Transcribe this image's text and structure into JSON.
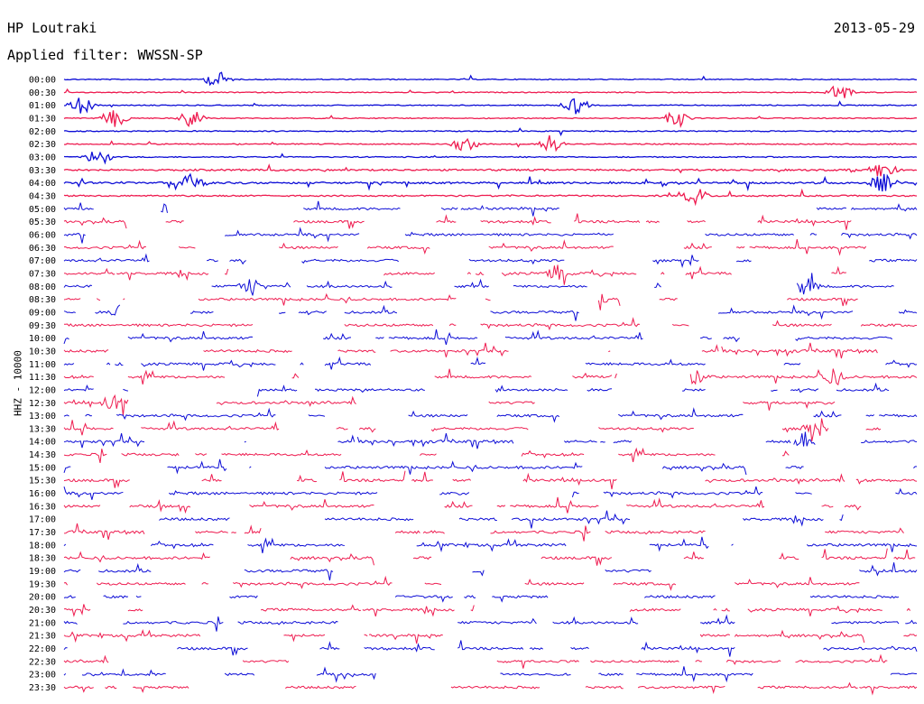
{
  "header": {
    "station": "HP Loutraki",
    "date": "2013-05-29",
    "filter": "Applied filter: WWSSN-SP"
  },
  "colors": {
    "blue": "#0d0dd6",
    "red": "#ee1c50"
  },
  "chart_data": {
    "type": "line",
    "title": "HP Loutraki",
    "subtitle": "Applied filter: WWSSN-SP",
    "ylabel": "HHZ - 10000",
    "xlabel": "",
    "grid": false,
    "legend": "none",
    "series_color_order": [
      "blue",
      "red"
    ],
    "rows": [
      {
        "label": "00:00",
        "activity": 0.1,
        "events": [
          0.18
        ]
      },
      {
        "label": "00:30",
        "activity": 0.08,
        "events": [
          0.91
        ]
      },
      {
        "label": "01:00",
        "activity": 0.1,
        "events": [
          0.02,
          0.6
        ]
      },
      {
        "label": "01:30",
        "activity": 0.1,
        "events": [
          0.06,
          0.15,
          0.72
        ]
      },
      {
        "label": "02:00",
        "activity": 0.12,
        "events": []
      },
      {
        "label": "02:30",
        "activity": 0.12,
        "events": [
          0.47,
          0.57
        ]
      },
      {
        "label": "03:00",
        "activity": 0.15,
        "events": [
          0.04
        ]
      },
      {
        "label": "03:30",
        "activity": 0.45,
        "events": [
          0.96
        ]
      },
      {
        "label": "04:00",
        "activity": 0.5,
        "events": [
          0.15,
          0.96
        ]
      },
      {
        "label": "04:30",
        "activity": 0.3,
        "events": [
          0.74
        ]
      },
      {
        "label": "05:00",
        "activity": 0.7,
        "events": [
          0.13
        ]
      },
      {
        "label": "05:30",
        "activity": 0.75,
        "events": []
      },
      {
        "label": "06:00",
        "activity": 0.75,
        "events": []
      },
      {
        "label": "06:30",
        "activity": 0.75,
        "events": []
      },
      {
        "label": "07:00",
        "activity": 0.8,
        "events": []
      },
      {
        "label": "07:30",
        "activity": 0.8,
        "events": [
          0.58
        ]
      },
      {
        "label": "08:00",
        "activity": 0.7,
        "events": [
          0.22,
          0.87
        ]
      },
      {
        "label": "08:30",
        "activity": 0.7,
        "events": [
          0.62
        ]
      },
      {
        "label": "09:00",
        "activity": 0.75,
        "events": [
          0.07
        ]
      },
      {
        "label": "09:30",
        "activity": 0.8,
        "events": [
          0.3
        ]
      },
      {
        "label": "10:00",
        "activity": 0.8,
        "events": []
      },
      {
        "label": "10:30",
        "activity": 0.8,
        "events": []
      },
      {
        "label": "11:00",
        "activity": 0.8,
        "events": []
      },
      {
        "label": "11:30",
        "activity": 0.75,
        "events": [
          0.66,
          0.74,
          0.9
        ]
      },
      {
        "label": "12:00",
        "activity": 0.75,
        "events": []
      },
      {
        "label": "12:30",
        "activity": 0.8,
        "events": [
          0.06
        ]
      },
      {
        "label": "13:00",
        "activity": 0.8,
        "events": [
          0.62
        ]
      },
      {
        "label": "13:30",
        "activity": 0.8,
        "events": [
          0.88
        ]
      },
      {
        "label": "14:00",
        "activity": 0.8,
        "events": [
          0.87
        ]
      },
      {
        "label": "14:30",
        "activity": 0.75,
        "events": [
          0.47,
          0.52
        ]
      },
      {
        "label": "15:00",
        "activity": 0.85,
        "events": []
      },
      {
        "label": "15:30",
        "activity": 0.85,
        "events": []
      },
      {
        "label": "16:00",
        "activity": 0.85,
        "events": []
      },
      {
        "label": "16:30",
        "activity": 0.85,
        "events": []
      },
      {
        "label": "17:00",
        "activity": 0.85,
        "events": []
      },
      {
        "label": "17:30",
        "activity": 0.85,
        "events": []
      },
      {
        "label": "18:00",
        "activity": 0.85,
        "events": []
      },
      {
        "label": "18:30",
        "activity": 0.85,
        "events": []
      },
      {
        "label": "19:00",
        "activity": 0.85,
        "events": []
      },
      {
        "label": "19:30",
        "activity": 0.8,
        "events": []
      },
      {
        "label": "20:00",
        "activity": 0.8,
        "events": []
      },
      {
        "label": "20:30",
        "activity": 0.8,
        "events": []
      },
      {
        "label": "21:00",
        "activity": 0.8,
        "events": []
      },
      {
        "label": "21:30",
        "activity": 0.8,
        "events": []
      },
      {
        "label": "22:00",
        "activity": 0.75,
        "events": []
      },
      {
        "label": "22:30",
        "activity": 0.7,
        "events": []
      },
      {
        "label": "23:00",
        "activity": 0.7,
        "events": []
      },
      {
        "label": "23:30",
        "activity": 0.75,
        "events": []
      }
    ]
  }
}
